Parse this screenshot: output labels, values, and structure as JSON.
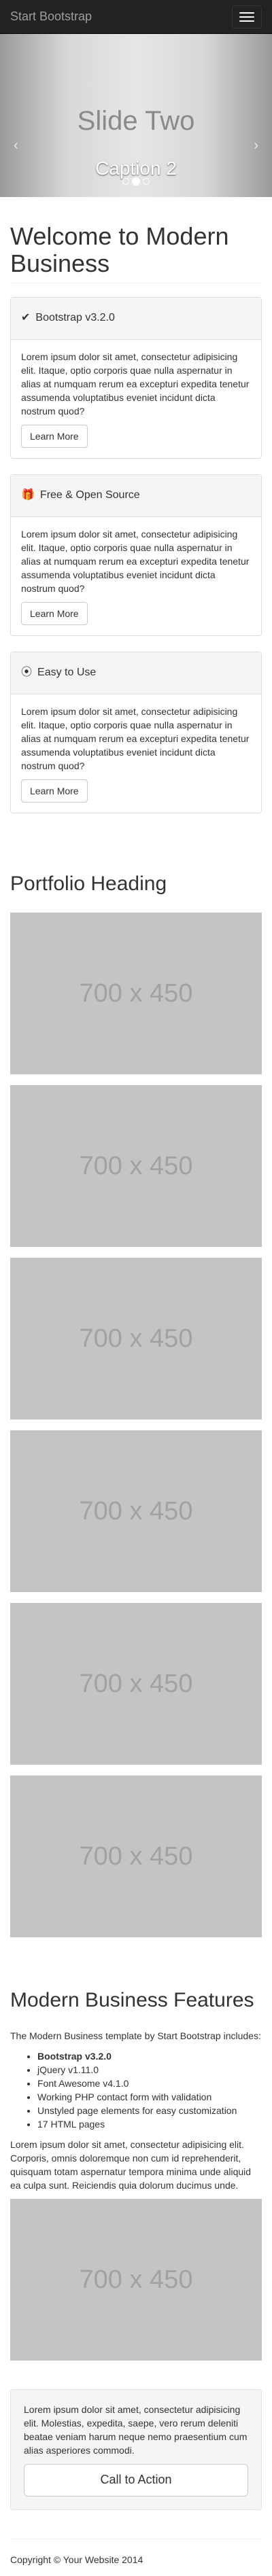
{
  "navbar": {
    "brand": "Start Bootstrap"
  },
  "carousel": {
    "title": "Slide Two",
    "caption": "Caption 2",
    "prev_icon": "chevron-left-icon",
    "next_icon": "chevron-right-icon"
  },
  "header": {
    "title": "Welcome to Modern Business"
  },
  "panels": [
    {
      "title": "Bootstrap v3.2.0",
      "icon": "check-icon",
      "body": "Lorem ipsum dolor sit amet, consectetur adipisicing elit. Itaque, optio corporis quae nulla aspernatur in alias at numquam rerum ea excepturi expedita tenetur assumenda voluptatibus eveniet incidunt dicta nostrum quod?",
      "button": "Learn More"
    },
    {
      "title": "Free & Open Source",
      "icon": "gift-icon",
      "body": "Lorem ipsum dolor sit amet, consectetur adipisicing elit. Itaque, optio corporis quae nulla aspernatur in alias at numquam rerum ea excepturi expedita tenetur assumenda voluptatibus eveniet incidunt dicta nostrum quod?",
      "button": "Learn More"
    },
    {
      "title": "Easy to Use",
      "icon": "compass-icon",
      "body": "Lorem ipsum dolor sit amet, consectetur adipisicing elit. Itaque, optio corporis quae nulla aspernatur in alias at numquam rerum ea excepturi expedita tenetur assumenda voluptatibus eveniet incidunt dicta nostrum quod?",
      "button": "Learn More"
    }
  ],
  "portfolio": {
    "heading": "Portfolio Heading",
    "items": [
      "700 x 450",
      "700 x 450",
      "700 x 450",
      "700 x 450",
      "700 x 450",
      "700 x 450"
    ]
  },
  "features": {
    "heading": "Modern Business Features",
    "intro": "The Modern Business template by Start Bootstrap includes:",
    "list": [
      "Bootstrap v3.2.0",
      "jQuery v1.11.0",
      "Font Awesome v4.1.0",
      "Working PHP contact form with validation",
      "Unstyled page elements for easy customization",
      "17 HTML pages"
    ],
    "paragraph": "Lorem ipsum dolor sit amet, consectetur adipisicing elit. Corporis, omnis doloremque non cum id reprehenderit, quisquam totam aspernatur tempora minima unde aliquid ea culpa sunt. Reiciendis quia dolorum ducimus unde.",
    "image": "700 x 450"
  },
  "cta": {
    "text": "Lorem ipsum dolor sit amet, consectetur adipisicing elit. Molestias, expedita, saepe, vero rerum deleniti beatae veniam harum neque nemo praesentium cum alias asperiores commodi.",
    "button": "Call to Action"
  },
  "footer": {
    "copyright": "Copyright © Your Website 2014"
  }
}
